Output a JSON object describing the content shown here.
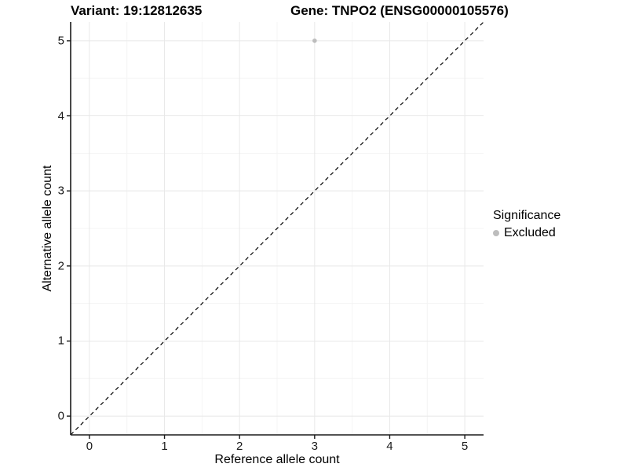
{
  "titles": {
    "variant": "Variant: 19:12812635",
    "gene": "Gene: TNPO2 (ENSG00000105576)"
  },
  "axes": {
    "x_label": "Reference allele count",
    "y_label": "Alternative allele count",
    "x_tick_labels": [
      "0",
      "1",
      "2",
      "3",
      "4",
      "5"
    ],
    "y_tick_labels": [
      "0",
      "1",
      "2",
      "3",
      "4",
      "5"
    ]
  },
  "legend": {
    "title": "Significance",
    "items": [
      {
        "label": "Excluded",
        "color": "#bdbdbd"
      }
    ]
  },
  "chart_data": {
    "type": "scatter",
    "title": "Variant: 19:12812635   Gene: TNPO2 (ENSG00000105576)",
    "xlabel": "Reference allele count",
    "ylabel": "Alternative allele count",
    "xlim": [
      -0.25,
      5.25
    ],
    "ylim": [
      -0.25,
      5.25
    ],
    "x_major_ticks": [
      0,
      1,
      2,
      3,
      4,
      5
    ],
    "y_major_ticks": [
      0,
      1,
      2,
      3,
      4,
      5
    ],
    "minor_grid_step": 0.5,
    "grid": "major and minor gridlines on white panel",
    "legend_position": "right",
    "series": [
      {
        "name": "Excluded",
        "color": "#bdbdbd",
        "points": [
          {
            "x": 3,
            "y": 5
          }
        ],
        "point_radius": 2.8
      }
    ],
    "reference_line": {
      "description": "identity line y = x",
      "from": [
        -0.25,
        -0.25
      ],
      "to": [
        5.25,
        5.25
      ],
      "style": "dashed",
      "color": "#000000"
    }
  },
  "colors": {
    "background": "#ffffff",
    "grid_major": "#e8e8e8",
    "grid_minor": "#f4f4f4",
    "axis_line": "#1a1a1a",
    "point": "#bdbdbd"
  }
}
